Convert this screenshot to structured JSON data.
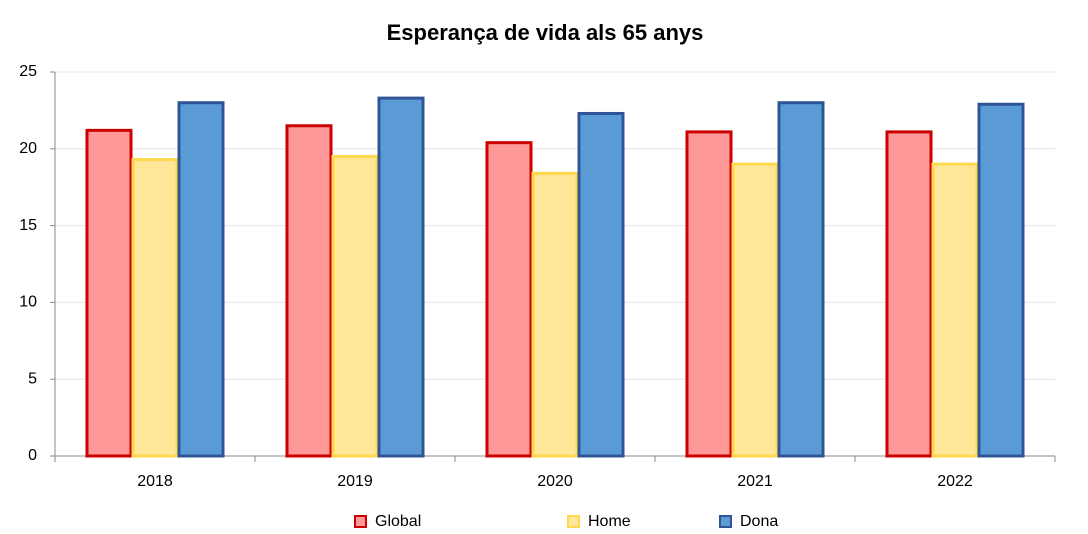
{
  "chart_data": {
    "type": "bar",
    "title": "Esperança de vida als 65 anys",
    "categories": [
      "2018",
      "2019",
      "2020",
      "2021",
      "2022"
    ],
    "series": [
      {
        "name": "Global",
        "color": "#ff9999",
        "edgecolor": "#cc0000",
        "values": [
          21.2,
          21.5,
          20.4,
          21.1,
          21.1
        ]
      },
      {
        "name": "Home",
        "color": "#ffe699",
        "edgecolor": "#ffd94d",
        "values": [
          19.3,
          19.5,
          18.4,
          19.0,
          19.0
        ]
      },
      {
        "name": "Dona",
        "color": "#5b9bd5",
        "edgecolor": "#2f5597",
        "values": [
          23.0,
          23.3,
          22.3,
          23.0,
          22.9
        ]
      }
    ],
    "ylim": [
      0,
      25
    ],
    "yticks": [
      0,
      5,
      10,
      15,
      20,
      25
    ],
    "grid": true,
    "legend": "bottom"
  }
}
